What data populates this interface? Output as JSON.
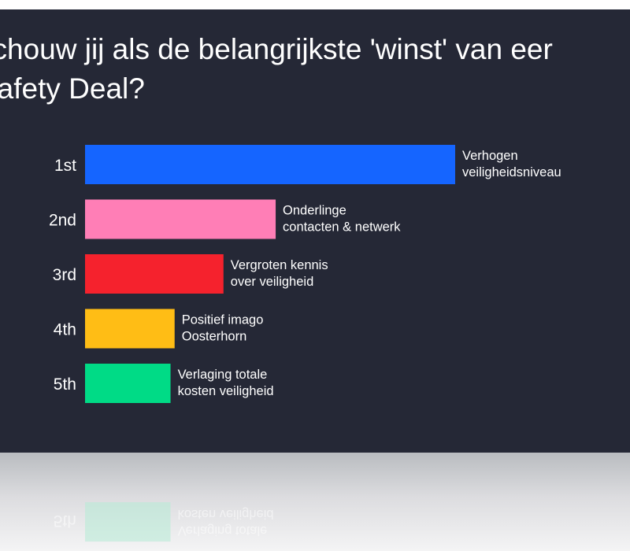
{
  "title_lines": [
    "schouw jij als de belangrijkste 'winst' van eer",
    "Safety Deal?"
  ],
  "chart_data": {
    "type": "bar",
    "orientation": "horizontal",
    "title": "schouw jij als de belangrijkste 'winst' van eer Safety Deal?",
    "categories": [
      "1st",
      "2nd",
      "3rd",
      "4th",
      "5th"
    ],
    "series": [
      {
        "values": [
          100,
          51.5,
          37.4,
          24.2,
          23.1
        ],
        "labels": [
          [
            "Verhogen",
            "veiligheidsniveau"
          ],
          [
            "Onderlinge",
            "contacten & netwerk"
          ],
          [
            "Vergroten kennis",
            "over veiligheid"
          ],
          [
            "Positief imago",
            "Oosterhorn"
          ],
          [
            "Verlaging totale",
            "kosten veiligheid"
          ]
        ],
        "colors": [
          "#1565ff",
          "#ff7eb6",
          "#f5222d",
          "#ffbd15",
          "#00db86"
        ]
      }
    ],
    "xlim": [
      0,
      100
    ],
    "grid": false,
    "legend": "none"
  }
}
